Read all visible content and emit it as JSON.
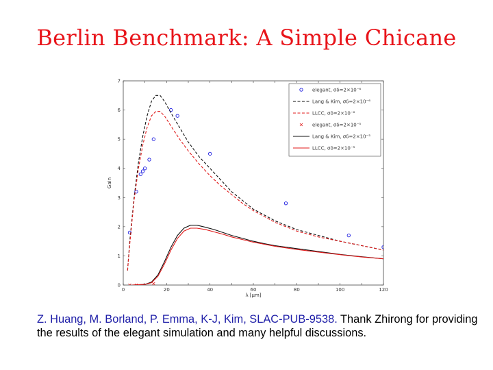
{
  "slide_title": "Berlin Benchmark: A Simple Chicane",
  "caption": {
    "citation": "Z. Huang, M. Borland, P. Emma, K-J, Kim, SLAC-PUB-9538.",
    "thanks": " Thank Zhirong for providing the results of the elegant simulation and many helpful discussions."
  },
  "chart_data": {
    "type": "line",
    "title": "",
    "xlabel": "λ [μm]",
    "ylabel": "Gain",
    "xlim": [
      0,
      120
    ],
    "ylim": [
      0,
      7
    ],
    "xticks": [
      "0",
      "10",
      "20",
      "30",
      "40",
      "50",
      "60",
      "70",
      "80",
      "90",
      "100",
      "110",
      "120"
    ],
    "yticks": [
      "0",
      "1",
      "2",
      "3",
      "4",
      "5",
      "6",
      "7"
    ],
    "grid": false,
    "legend_position": "top-right",
    "series": [
      {
        "name": "elegant, σδ=2×10⁻⁶",
        "color": "#1a1ae0",
        "style": "circles",
        "points": [
          [
            3,
            1.8
          ],
          [
            6,
            3.2
          ],
          [
            8,
            3.8
          ],
          [
            9,
            3.9
          ],
          [
            10,
            4.0
          ],
          [
            12,
            4.3
          ],
          [
            14,
            5.0
          ],
          [
            22,
            6.0
          ],
          [
            25,
            5.8
          ],
          [
            40,
            4.5
          ],
          [
            75,
            2.8
          ],
          [
            104,
            1.7
          ],
          [
            120,
            1.3
          ]
        ]
      },
      {
        "name": "Lang & Kim, σδ=2×10⁻⁶",
        "color": "#111111",
        "style": "dashed",
        "points": [
          [
            2,
            0.5
          ],
          [
            3,
            1.5
          ],
          [
            5,
            3.0
          ],
          [
            7,
            4.2
          ],
          [
            9,
            5.1
          ],
          [
            11,
            5.8
          ],
          [
            13,
            6.3
          ],
          [
            15,
            6.5
          ],
          [
            17,
            6.5
          ],
          [
            19,
            6.3
          ],
          [
            22,
            5.9
          ],
          [
            26,
            5.4
          ],
          [
            30,
            4.9
          ],
          [
            35,
            4.4
          ],
          [
            40,
            4.0
          ],
          [
            45,
            3.6
          ],
          [
            50,
            3.2
          ],
          [
            55,
            2.9
          ],
          [
            60,
            2.6
          ],
          [
            70,
            2.2
          ],
          [
            80,
            1.9
          ],
          [
            90,
            1.7
          ],
          [
            100,
            1.5
          ],
          [
            110,
            1.35
          ],
          [
            120,
            1.2
          ]
        ]
      },
      {
        "name": "LLCC, σδ=2×10⁻⁶",
        "color": "#e01a1a",
        "style": "dashed",
        "points": [
          [
            2,
            0.5
          ],
          [
            3,
            1.4
          ],
          [
            5,
            2.9
          ],
          [
            7,
            4.0
          ],
          [
            9,
            4.8
          ],
          [
            11,
            5.4
          ],
          [
            13,
            5.8
          ],
          [
            15,
            5.95
          ],
          [
            17,
            5.95
          ],
          [
            19,
            5.8
          ],
          [
            22,
            5.45
          ],
          [
            26,
            5.0
          ],
          [
            30,
            4.6
          ],
          [
            35,
            4.15
          ],
          [
            40,
            3.75
          ],
          [
            45,
            3.4
          ],
          [
            50,
            3.1
          ],
          [
            55,
            2.8
          ],
          [
            60,
            2.55
          ],
          [
            70,
            2.15
          ],
          [
            80,
            1.85
          ],
          [
            90,
            1.65
          ],
          [
            100,
            1.5
          ],
          [
            110,
            1.35
          ],
          [
            120,
            1.2
          ]
        ]
      },
      {
        "name": "elegant, σδ=2×10⁻⁵",
        "color": "#e01a1a",
        "style": "crosses",
        "points": [
          [
            3,
            0
          ],
          [
            6,
            0
          ],
          [
            10,
            0
          ],
          [
            14,
            0.05
          ]
        ]
      },
      {
        "name": "Lang & Kim, σδ=2×10⁻⁵",
        "color": "#111111",
        "style": "solid",
        "points": [
          [
            4,
            0
          ],
          [
            10,
            0.02
          ],
          [
            13,
            0.1
          ],
          [
            16,
            0.35
          ],
          [
            19,
            0.8
          ],
          [
            22,
            1.3
          ],
          [
            25,
            1.7
          ],
          [
            28,
            1.95
          ],
          [
            31,
            2.05
          ],
          [
            34,
            2.05
          ],
          [
            38,
            1.98
          ],
          [
            42,
            1.9
          ],
          [
            46,
            1.8
          ],
          [
            50,
            1.7
          ],
          [
            55,
            1.6
          ],
          [
            60,
            1.5
          ],
          [
            65,
            1.42
          ],
          [
            70,
            1.35
          ],
          [
            80,
            1.25
          ],
          [
            90,
            1.15
          ],
          [
            100,
            1.05
          ],
          [
            110,
            0.97
          ],
          [
            120,
            0.9
          ]
        ]
      },
      {
        "name": "LLCC, σδ=2×10⁻⁵",
        "color": "#e01a1a",
        "style": "solid",
        "points": [
          [
            4,
            0
          ],
          [
            10,
            0.02
          ],
          [
            13,
            0.08
          ],
          [
            16,
            0.3
          ],
          [
            19,
            0.72
          ],
          [
            22,
            1.2
          ],
          [
            25,
            1.6
          ],
          [
            28,
            1.85
          ],
          [
            31,
            1.95
          ],
          [
            34,
            1.95
          ],
          [
            38,
            1.9
          ],
          [
            42,
            1.82
          ],
          [
            46,
            1.74
          ],
          [
            50,
            1.65
          ],
          [
            55,
            1.56
          ],
          [
            60,
            1.47
          ],
          [
            65,
            1.4
          ],
          [
            70,
            1.33
          ],
          [
            80,
            1.22
          ],
          [
            90,
            1.13
          ],
          [
            100,
            1.04
          ],
          [
            110,
            0.96
          ],
          [
            120,
            0.9
          ]
        ]
      }
    ]
  }
}
